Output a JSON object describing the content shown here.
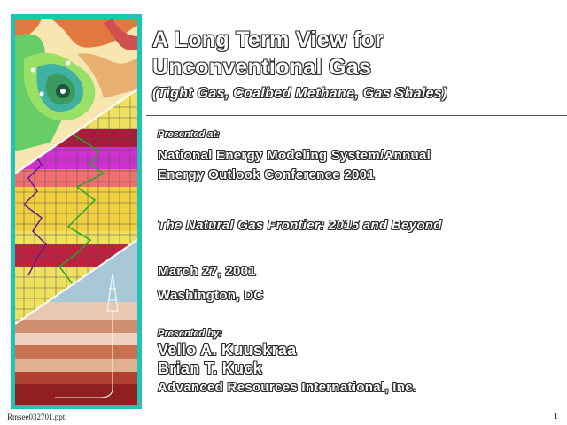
{
  "slide": {
    "title_line1": "A Long Term View for",
    "title_line2": "Unconventional Gas",
    "subtitle": "(Tight Gas, Coalbed Methane, Gas Shales)",
    "presented_at_label": "Presented at:",
    "conference_line1": "National Energy Modeling System/Annual",
    "conference_line2": "Energy Outlook Conference 2001",
    "theme": "The Natural Gas Frontier:  2015 and Beyond",
    "date": "March 27, 2001",
    "location": "Washington, DC",
    "presented_by_label": "Presented by:",
    "presenter1": "Vello A. Kuuskraa",
    "presenter2": "Brian T. Kuck",
    "organization": "Advanced Resources International, Inc."
  },
  "footer": {
    "filename": "Rmsee032701.ppt",
    "page_number": "1"
  },
  "colors": {
    "frame": "#20c4b4",
    "text_fill": "#ffffff",
    "text_outline": "#2a2a2a"
  }
}
